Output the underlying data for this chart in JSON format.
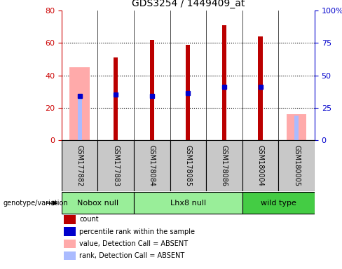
{
  "title": "GDS3254 / 1449409_at",
  "samples": [
    "GSM177882",
    "GSM177883",
    "GSM178084",
    "GSM178085",
    "GSM178086",
    "GSM180004",
    "GSM180005"
  ],
  "count_values": [
    0,
    51,
    62,
    59,
    71,
    64,
    0
  ],
  "percentile_values": [
    27,
    28,
    27,
    29,
    33,
    33,
    0
  ],
  "absent_value": [
    45,
    0,
    0,
    0,
    0,
    0,
    16
  ],
  "absent_rank": [
    27,
    0,
    0,
    0,
    0,
    0,
    15
  ],
  "ylim_left": [
    0,
    80
  ],
  "ylim_right": [
    0,
    100
  ],
  "yticks_left": [
    0,
    20,
    40,
    60,
    80
  ],
  "yticks_right": [
    0,
    25,
    50,
    75,
    100
  ],
  "ytick_labels_right": [
    "0",
    "25",
    "50",
    "75",
    "100%"
  ],
  "left_axis_color": "#cc0000",
  "right_axis_color": "#0000cc",
  "count_color": "#bb0000",
  "percentile_color": "#0000cc",
  "absent_value_color": "#ffaaaa",
  "absent_rank_color": "#aabbff",
  "group_defs": [
    {
      "start": 0,
      "end": 1,
      "label": "Nobox null",
      "color": "#99ee99"
    },
    {
      "start": 2,
      "end": 4,
      "label": "Lhx8 null",
      "color": "#99ee99"
    },
    {
      "start": 5,
      "end": 6,
      "label": "wild type",
      "color": "#44cc44"
    }
  ],
  "genotype_label": "genotype/variation",
  "legend_items": [
    {
      "label": "count",
      "color": "#bb0000"
    },
    {
      "label": "percentile rank within the sample",
      "color": "#0000cc"
    },
    {
      "label": "value, Detection Call = ABSENT",
      "color": "#ffaaaa"
    },
    {
      "label": "rank, Detection Call = ABSENT",
      "color": "#aabbff"
    }
  ],
  "sample_area_color": "#c8c8c8",
  "plot_bg_color": "#ffffff",
  "fig_bg_color": "#ffffff",
  "grid_color": "#000000"
}
